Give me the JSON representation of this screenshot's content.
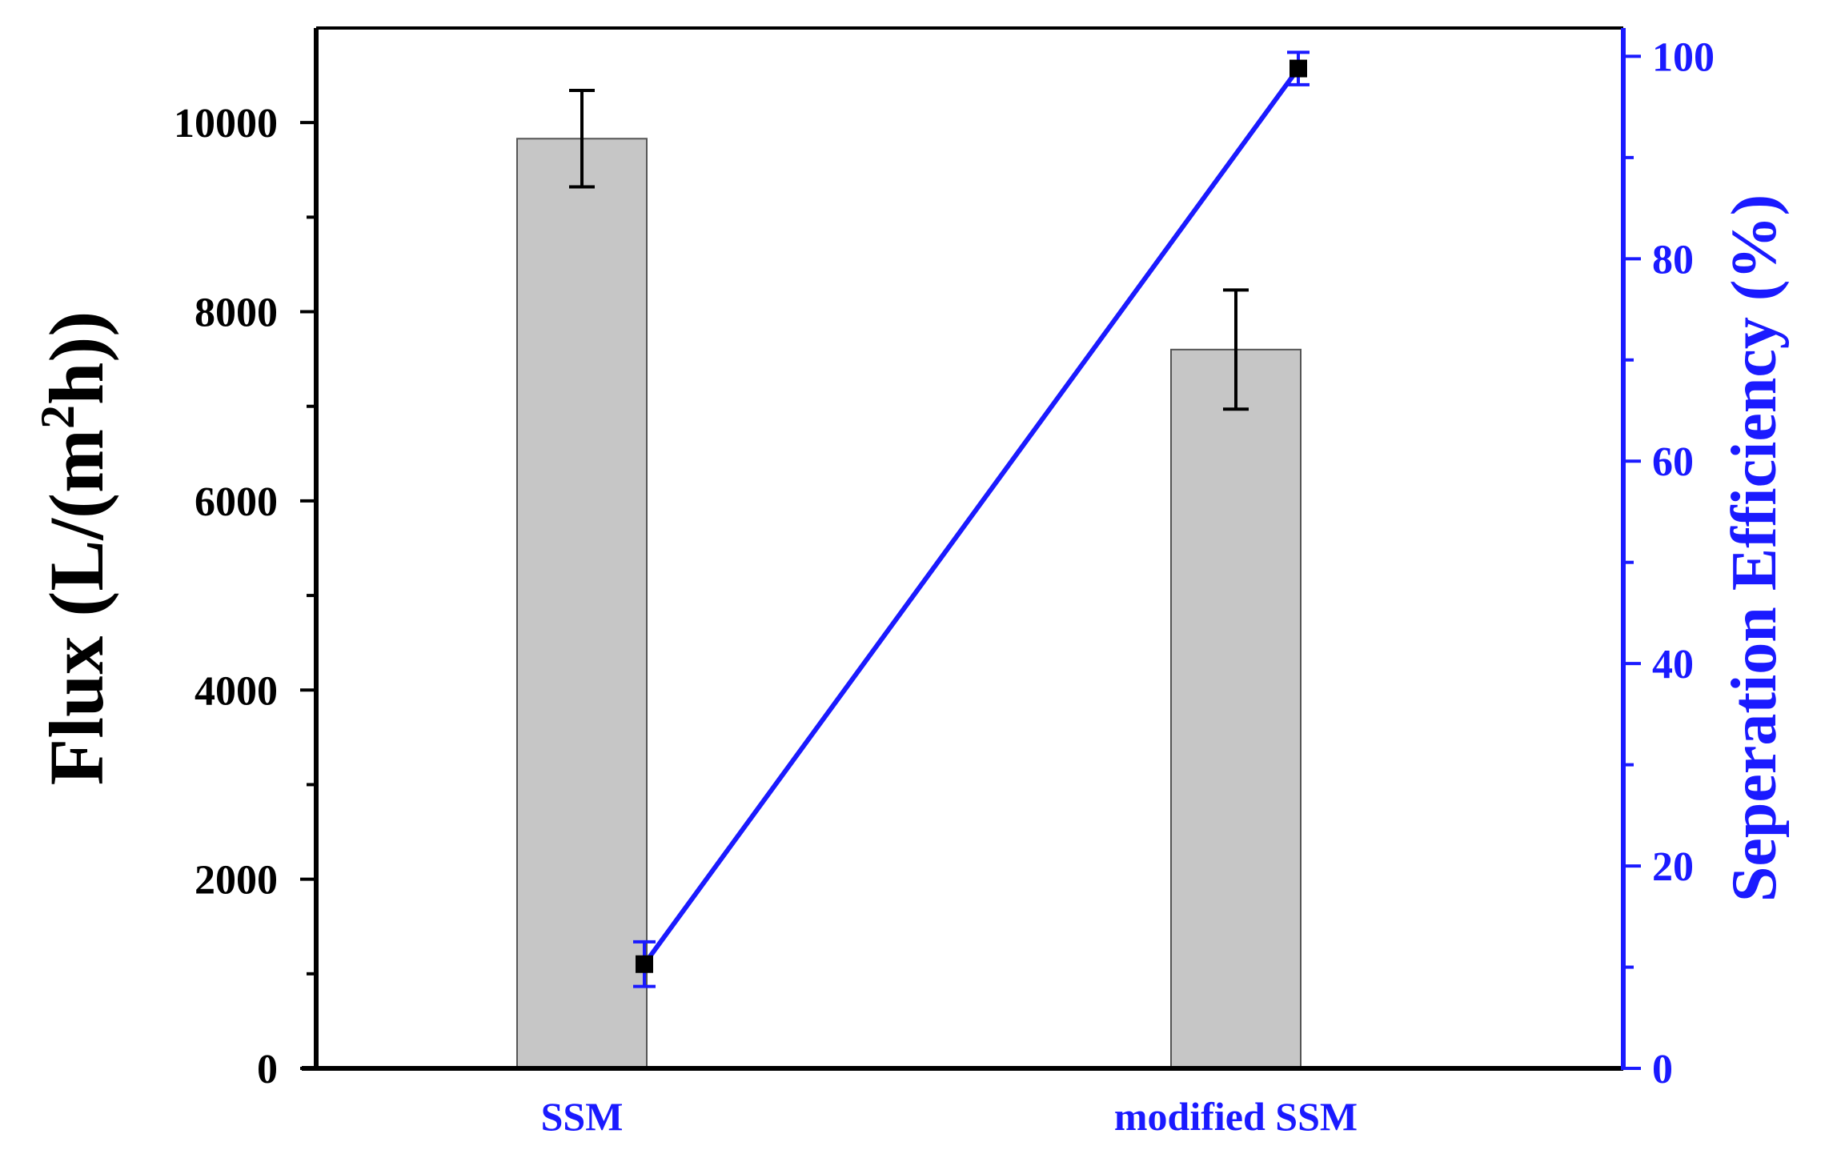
{
  "chart_data": {
    "type": "bar",
    "categories": [
      "SSM",
      "modified SSM"
    ],
    "ylabel": "Flux (L/(m²h))",
    "ylabel_parts": {
      "pre": "Flux (L/(m",
      "sup": "2",
      "post": "h))"
    },
    "ylabel_right": "Seperation Efficiency (%)",
    "ylim": [
      0,
      11000
    ],
    "ylim_right": [
      0,
      102.8
    ],
    "yticks": [
      0,
      2000,
      4000,
      6000,
      8000,
      10000
    ],
    "yticks_right": [
      0,
      20,
      40,
      60,
      80,
      100
    ],
    "grid": false,
    "series": [
      {
        "type": "bar",
        "axis": "left",
        "color": "#c6c6c6",
        "values": [
          9830,
          7600
        ],
        "errors": [
          510,
          630
        ]
      },
      {
        "type": "line",
        "axis": "right",
        "color": "#1a1aff",
        "marker_color": "#000000",
        "values": [
          10.3,
          98.8
        ],
        "errors": [
          2.2,
          1.6
        ]
      }
    ]
  }
}
